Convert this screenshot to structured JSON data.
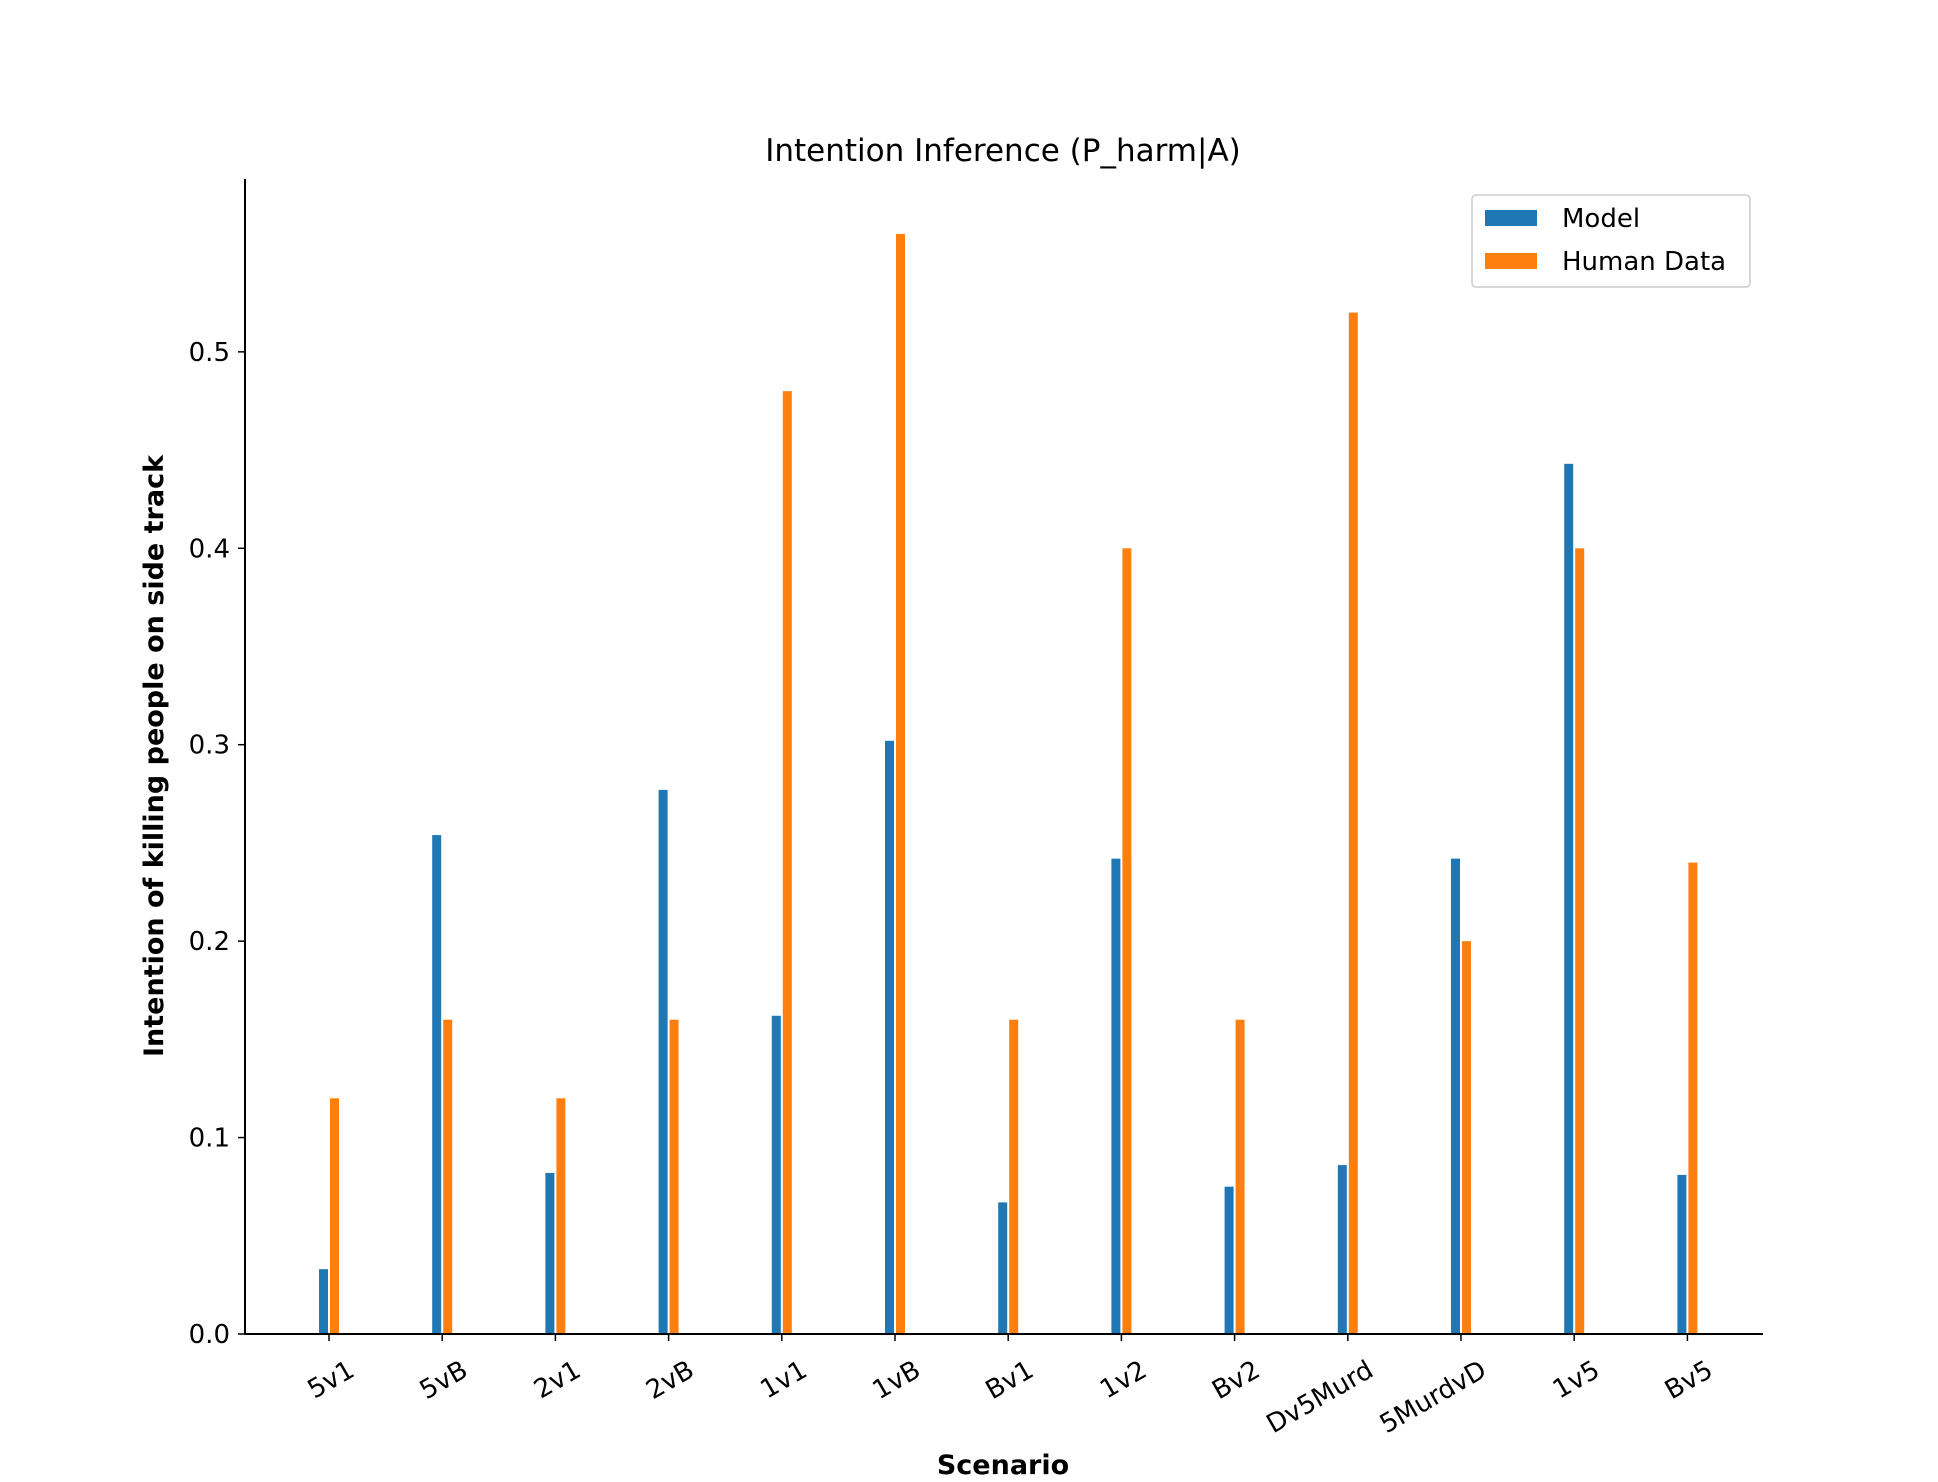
{
  "chart_data": {
    "type": "bar",
    "title": "Intention Inference (P_harm|A)",
    "xlabel": "Scenario",
    "ylabel": "Intention of killing people on side track",
    "categories": [
      "5v1",
      "5vB",
      "2v1",
      "2vB",
      "1v1",
      "1vB",
      "Bv1",
      "1v2",
      "Bv2",
      "Dv5Murd",
      "5MurdvD",
      "1v5",
      "Bv5"
    ],
    "series": [
      {
        "name": "Model",
        "color": "#1f77b4",
        "values": [
          0.033,
          0.254,
          0.082,
          0.277,
          0.162,
          0.302,
          0.067,
          0.242,
          0.075,
          0.086,
          0.242,
          0.443,
          0.081
        ]
      },
      {
        "name": "Human Data",
        "color": "#ff7f0e",
        "values": [
          0.12,
          0.16,
          0.12,
          0.16,
          0.48,
          0.56,
          0.16,
          0.4,
          0.16,
          0.52,
          0.2,
          0.4,
          0.24
        ]
      }
    ],
    "ylim": [
      0,
      0.588
    ],
    "yticks": [
      "0.0",
      "0.1",
      "0.2",
      "0.3",
      "0.4",
      "0.5"
    ],
    "legend_position": "top-right",
    "grid": false
  }
}
